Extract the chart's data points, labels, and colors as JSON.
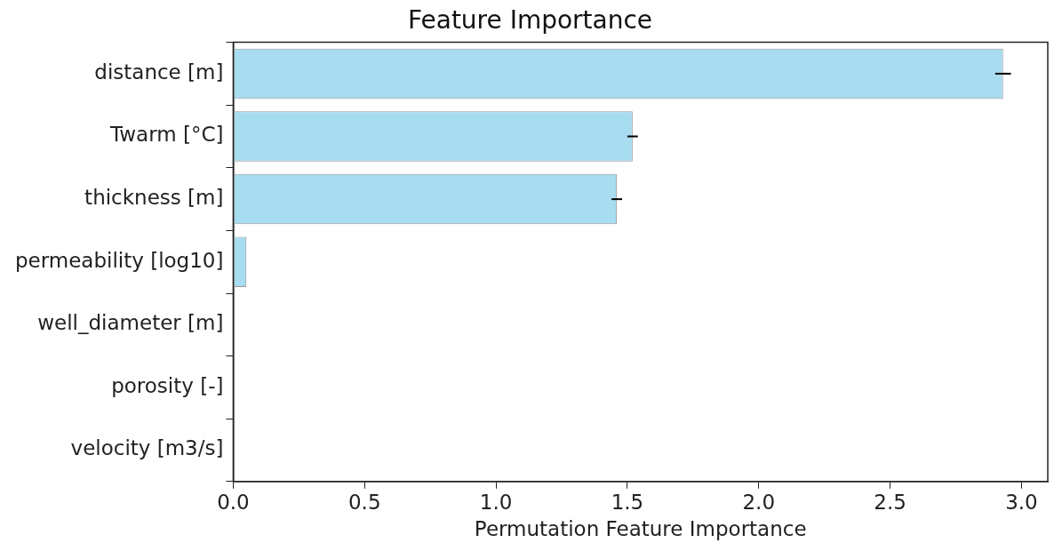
{
  "chart_data": {
    "type": "bar",
    "orientation": "horizontal",
    "title": "Feature Importance",
    "xlabel": "Permutation Feature Importance",
    "categories": [
      "distance [m]",
      "Twarm [°C]",
      "thickness [m]",
      "permeability [log10]",
      "well_diameter [m]",
      "porosity [-]",
      "velocity [m3/s]"
    ],
    "values": [
      2.93,
      1.52,
      1.46,
      0.05,
      0,
      0,
      0
    ],
    "errors": [
      0.03,
      0.02,
      0.02,
      null,
      null,
      null,
      null
    ],
    "color": "#a8dcf0",
    "xlim": [
      0,
      3.1
    ],
    "xticks": [
      {
        "value": 0,
        "label": "0.0"
      },
      0.5,
      {
        "value": 1,
        "label": "1.0"
      },
      1.5,
      {
        "value": 2,
        "label": "2.0"
      },
      2.5,
      {
        "value": 3,
        "label": "3.0"
      }
    ],
    "grid": false,
    "legend": false
  }
}
